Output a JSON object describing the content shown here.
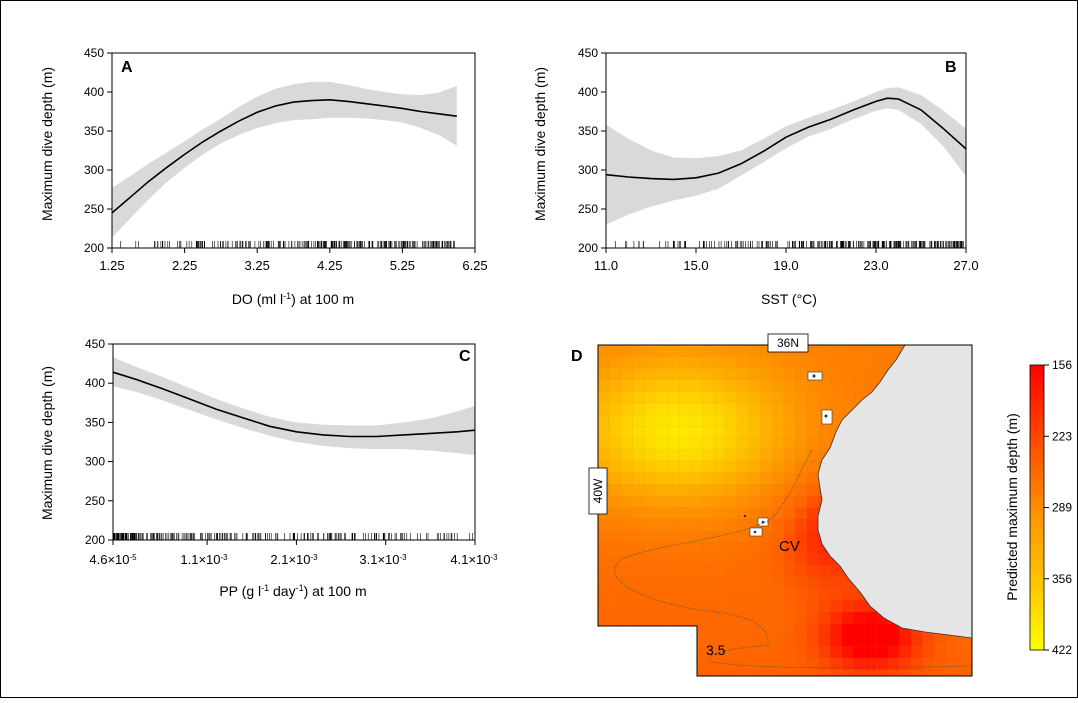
{
  "figure": {
    "panels": [
      "A",
      "B",
      "C"
    ]
  },
  "chart_data": [
    {
      "type": "line",
      "panel_label": "A",
      "xlabel_main": "DO (ml l",
      "xlabel_sup": "-1",
      "xlabel_tail": ") at 100 m",
      "ylabel": "Maximum dive depth (m)",
      "x_ticks": [
        "1.25",
        "2.25",
        "3.25",
        "4.25",
        "5.25",
        "6.25"
      ],
      "x_tick_values": [
        1.25,
        2.25,
        3.25,
        4.25,
        5.25,
        6.25
      ],
      "y_ticks": [
        200,
        250,
        300,
        350,
        400,
        450
      ],
      "xlim": [
        1.25,
        6.25
      ],
      "ylim": [
        200,
        450
      ],
      "fit": {
        "x": [
          1.25,
          1.5,
          1.75,
          2.0,
          2.25,
          2.5,
          2.75,
          3.0,
          3.25,
          3.5,
          3.75,
          4.0,
          4.25,
          4.5,
          4.75,
          5.0,
          5.25,
          5.5,
          5.75,
          6.0
        ],
        "y": [
          245,
          265,
          285,
          303,
          320,
          336,
          350,
          363,
          374,
          382,
          387,
          389,
          390,
          388,
          385,
          382,
          379,
          375,
          372,
          369
        ]
      },
      "ci_upper": [
        277,
        292,
        308,
        322,
        337,
        352,
        366,
        381,
        394,
        404,
        410,
        413,
        413,
        409,
        404,
        400,
        397,
        396,
        399,
        408
      ],
      "ci_lower": [
        213,
        238,
        262,
        284,
        303,
        320,
        334,
        345,
        354,
        360,
        364,
        365,
        367,
        367,
        366,
        364,
        361,
        354,
        345,
        331
      ],
      "rug_range": [
        1.27,
        5.99
      ]
    },
    {
      "type": "line",
      "panel_label": "B",
      "xlabel": "SST (°C)",
      "ylabel": "Maximum dive depth (m)",
      "x_ticks": [
        "11.0",
        "15.0",
        "19.0",
        "23.0",
        "27.0"
      ],
      "x_tick_values": [
        11,
        15,
        19,
        23,
        27
      ],
      "y_ticks": [
        200,
        250,
        300,
        350,
        400,
        450
      ],
      "xlim": [
        11,
        27
      ],
      "ylim": [
        200,
        450
      ],
      "fit": {
        "x": [
          11,
          12,
          13,
          14,
          15,
          16,
          17,
          18,
          19,
          20,
          21,
          22,
          23,
          23.5,
          24,
          25,
          26,
          27
        ],
        "y": [
          294,
          291,
          289,
          288,
          290,
          296,
          308,
          324,
          342,
          355,
          365,
          377,
          388,
          392,
          391,
          377,
          353,
          327
        ]
      },
      "ci_upper": [
        358,
        340,
        325,
        316,
        315,
        318,
        325,
        340,
        356,
        367,
        377,
        388,
        400,
        405,
        406,
        396,
        376,
        353
      ],
      "ci_lower": [
        230,
        243,
        253,
        261,
        267,
        276,
        293,
        310,
        328,
        343,
        353,
        365,
        376,
        379,
        377,
        359,
        330,
        292
      ],
      "rug_range": [
        11.2,
        26.9
      ]
    },
    {
      "type": "line",
      "panel_label": "C",
      "xlabel_main": "PP (g l",
      "xlabel_sup1": "-1",
      "xlabel_mid": " day",
      "xlabel_sup2": "-1",
      "xlabel_tail": ") at 100 m",
      "ylabel": "Maximum dive depth (m)",
      "x_tick_labels": [
        {
          "base": "4.6×10",
          "exp": "-5"
        },
        {
          "base": "1.1×10",
          "exp": "-3"
        },
        {
          "base": "2.1×10",
          "exp": "-3"
        },
        {
          "base": "3.1×10",
          "exp": "-3"
        },
        {
          "base": "4.1×10",
          "exp": "-3"
        }
      ],
      "x_tick_values": [
        4.6e-05,
        0.0011,
        0.0021,
        0.0031,
        0.0041
      ],
      "y_ticks": [
        200,
        250,
        300,
        350,
        400,
        450
      ],
      "xlim": [
        4.6e-05,
        0.0041
      ],
      "ylim": [
        200,
        450
      ],
      "fit": {
        "x": [
          4.6e-05,
          0.0003,
          0.0006,
          0.0009,
          0.0012,
          0.0015,
          0.0018,
          0.0021,
          0.0024,
          0.0027,
          0.003,
          0.0033,
          0.0036,
          0.0039,
          0.0041
        ],
        "y": [
          414,
          405,
          393,
          380,
          367,
          356,
          345,
          338,
          334,
          332,
          332,
          334,
          336,
          338,
          340
        ]
      },
      "ci_upper": [
        433,
        421,
        408,
        394,
        380,
        368,
        357,
        350,
        347,
        346,
        346,
        350,
        355,
        364,
        371
      ],
      "ci_lower": [
        396,
        389,
        378,
        366,
        354,
        343,
        333,
        325,
        320,
        317,
        316,
        316,
        314,
        311,
        308
      ],
      "rug_range": [
        5e-05,
        0.0041
      ]
    },
    {
      "type": "heatmap",
      "panel_label": "D",
      "labels": {
        "lat": "36N",
        "lon": "40W",
        "region": "CV",
        "contour": "3.5"
      },
      "colorbar": {
        "title": "Predicted maximum depth (m)",
        "ticks": [
          "156",
          "223",
          "289",
          "356",
          "422"
        ],
        "range": [
          156,
          422
        ],
        "colors": [
          "#ff0000",
          "#ff6600",
          "#ff9900",
          "#ffcc00",
          "#ffff00"
        ]
      }
    }
  ]
}
